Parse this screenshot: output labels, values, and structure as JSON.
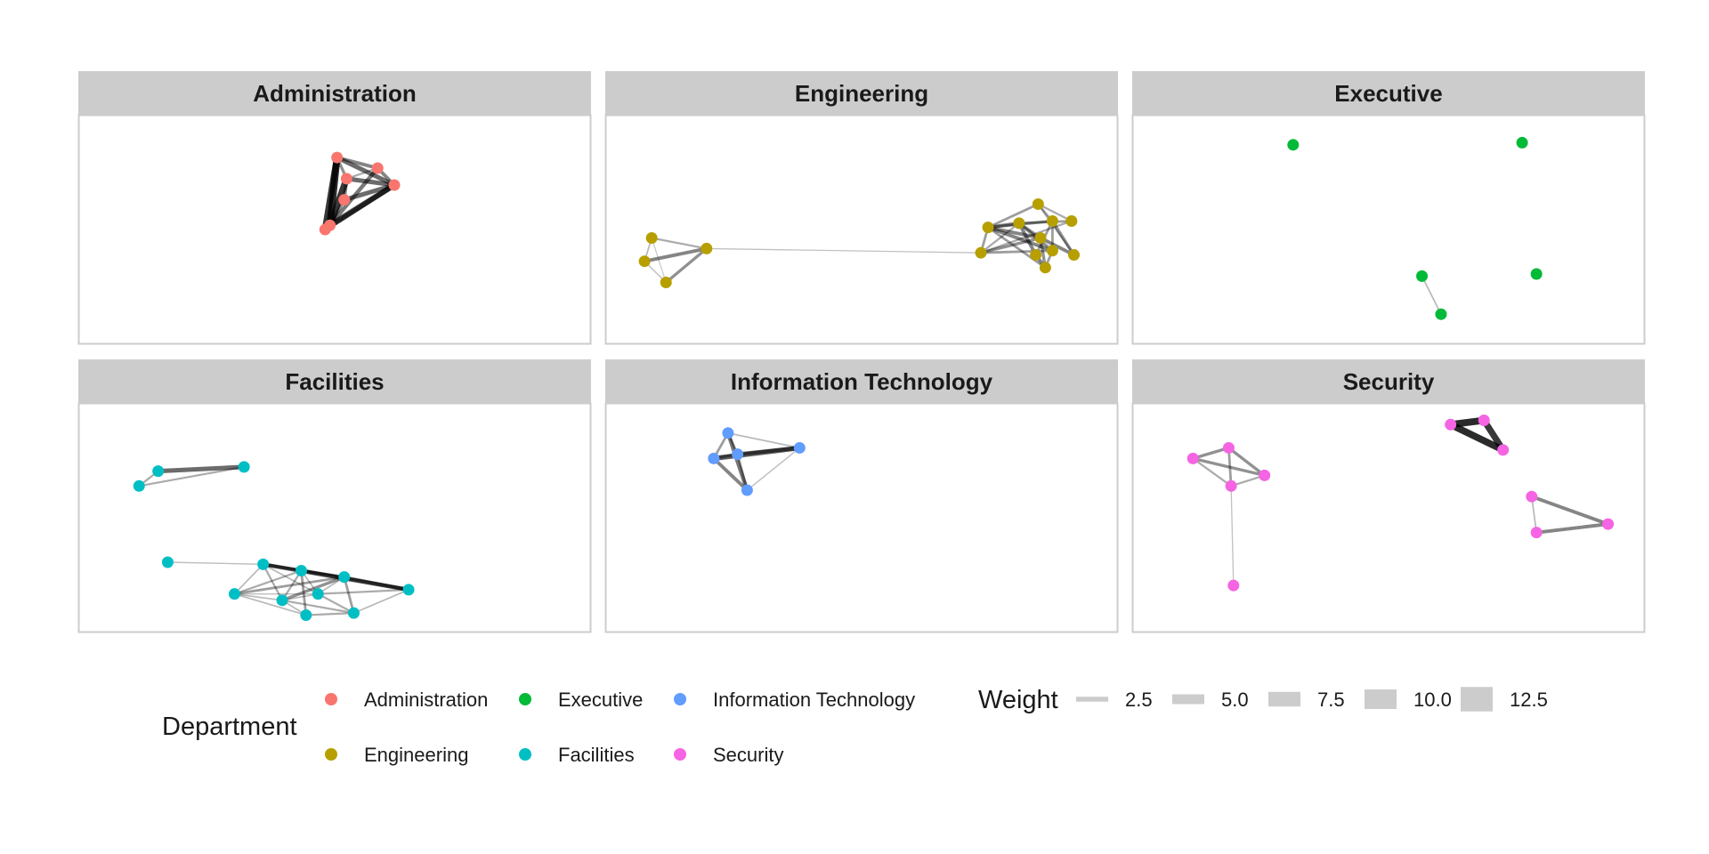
{
  "chart_data": {
    "type": "network",
    "facet_variable": "Department",
    "facets": [
      {
        "title": "Administration",
        "color": "#F8766D",
        "nodes": [
          [
            0.505,
            0.16
          ],
          [
            0.525,
            0.26
          ],
          [
            0.59,
            0.21
          ],
          [
            0.625,
            0.29
          ],
          [
            0.52,
            0.36
          ],
          [
            0.49,
            0.48
          ],
          [
            0.48,
            0.5
          ]
        ],
        "edges": [
          [
            0,
            5,
            13
          ],
          [
            0,
            6,
            12
          ],
          [
            1,
            5,
            12
          ],
          [
            0,
            2,
            6
          ],
          [
            0,
            3,
            8
          ],
          [
            2,
            3,
            6
          ],
          [
            1,
            3,
            8
          ],
          [
            4,
            3,
            8
          ],
          [
            5,
            3,
            10
          ],
          [
            6,
            3,
            9
          ],
          [
            2,
            5,
            7
          ],
          [
            1,
            4,
            6
          ],
          [
            0,
            1,
            5
          ],
          [
            4,
            5,
            6
          ],
          [
            1,
            2,
            3
          ]
        ]
      },
      {
        "title": "Engineering",
        "color": "#B79F00",
        "nodes": [
          [
            0.06,
            0.54
          ],
          [
            0.045,
            0.65
          ],
          [
            0.09,
            0.75
          ],
          [
            0.175,
            0.59
          ],
          [
            0.75,
            0.61
          ],
          [
            0.765,
            0.49
          ],
          [
            0.83,
            0.47
          ],
          [
            0.87,
            0.38
          ],
          [
            0.9,
            0.46
          ],
          [
            0.875,
            0.54
          ],
          [
            0.865,
            0.62
          ],
          [
            0.9,
            0.6
          ],
          [
            0.945,
            0.62
          ],
          [
            0.94,
            0.46
          ],
          [
            0.885,
            0.68
          ]
        ],
        "edges": [
          [
            0,
            3,
            3
          ],
          [
            1,
            3,
            6
          ],
          [
            2,
            3,
            5
          ],
          [
            0,
            1,
            2
          ],
          [
            1,
            2,
            1.5
          ],
          [
            0,
            2,
            1
          ],
          [
            3,
            4,
            1.3
          ],
          [
            4,
            5,
            4
          ],
          [
            5,
            6,
            6
          ],
          [
            5,
            7,
            4
          ],
          [
            5,
            8,
            5
          ],
          [
            5,
            9,
            6
          ],
          [
            6,
            9,
            5
          ],
          [
            6,
            10,
            6
          ],
          [
            7,
            13,
            3
          ],
          [
            8,
            12,
            5
          ],
          [
            9,
            12,
            6
          ],
          [
            4,
            11,
            4
          ],
          [
            10,
            14,
            6
          ],
          [
            11,
            14,
            4
          ],
          [
            4,
            13,
            3
          ],
          [
            4,
            9,
            5
          ],
          [
            6,
            13,
            4
          ],
          [
            8,
            11,
            4
          ],
          [
            9,
            14,
            5
          ],
          [
            5,
            11,
            6
          ],
          [
            5,
            14,
            4
          ],
          [
            7,
            12,
            3
          ],
          [
            6,
            11,
            5
          ],
          [
            4,
            6,
            3
          ],
          [
            8,
            10,
            4
          ],
          [
            7,
            8,
            3
          ]
        ]
      },
      {
        "title": "Executive",
        "color": "#00BA38",
        "nodes": [
          [
            0.3,
            0.1
          ],
          [
            0.78,
            0.09
          ],
          [
            0.57,
            0.72
          ],
          [
            0.81,
            0.71
          ],
          [
            0.61,
            0.9
          ]
        ],
        "edges": [
          [
            2,
            4,
            2
          ]
        ]
      },
      {
        "title": "Facilities",
        "color": "#00BFC4",
        "nodes": [
          [
            0.09,
            0.35
          ],
          [
            0.13,
            0.28
          ],
          [
            0.31,
            0.26
          ],
          [
            0.15,
            0.71
          ],
          [
            0.35,
            0.72
          ],
          [
            0.29,
            0.86
          ],
          [
            0.39,
            0.89
          ],
          [
            0.43,
            0.75
          ],
          [
            0.52,
            0.78
          ],
          [
            0.465,
            0.86
          ],
          [
            0.44,
            0.96
          ],
          [
            0.54,
            0.95
          ],
          [
            0.655,
            0.84
          ]
        ],
        "edges": [
          [
            0,
            1,
            3
          ],
          [
            1,
            2,
            8
          ],
          [
            0,
            2,
            3
          ],
          [
            3,
            4,
            1.5
          ],
          [
            4,
            12,
            7
          ],
          [
            4,
            7,
            6
          ],
          [
            4,
            8,
            5
          ],
          [
            7,
            12,
            7
          ],
          [
            8,
            12,
            5
          ],
          [
            5,
            7,
            3
          ],
          [
            5,
            8,
            4
          ],
          [
            6,
            7,
            3
          ],
          [
            6,
            8,
            5
          ],
          [
            7,
            10,
            4
          ],
          [
            8,
            11,
            4
          ],
          [
            9,
            11,
            3
          ],
          [
            5,
            10,
            2
          ],
          [
            6,
            11,
            3
          ],
          [
            4,
            5,
            2
          ],
          [
            4,
            6,
            3
          ],
          [
            9,
            12,
            3
          ],
          [
            8,
            9,
            2
          ],
          [
            7,
            9,
            2
          ],
          [
            10,
            11,
            3
          ],
          [
            6,
            9,
            2
          ],
          [
            5,
            9,
            1.5
          ],
          [
            7,
            8,
            3
          ],
          [
            4,
            9,
            2
          ],
          [
            11,
            12,
            2
          ],
          [
            5,
            6,
            2
          ],
          [
            6,
            10,
            2
          ]
        ]
      },
      {
        "title": "Information Technology",
        "color": "#619CFF",
        "nodes": [
          [
            0.22,
            0.1
          ],
          [
            0.19,
            0.22
          ],
          [
            0.24,
            0.2
          ],
          [
            0.37,
            0.17
          ],
          [
            0.26,
            0.37
          ]
        ],
        "edges": [
          [
            1,
            3,
            9
          ],
          [
            2,
            3,
            7
          ],
          [
            0,
            4,
            7
          ],
          [
            1,
            4,
            6
          ],
          [
            0,
            1,
            4
          ],
          [
            0,
            2,
            4
          ],
          [
            1,
            2,
            5
          ],
          [
            2,
            4,
            4
          ],
          [
            3,
            4,
            1.5
          ],
          [
            0,
            3,
            2
          ]
        ]
      },
      {
        "title": "Security",
        "color": "#F564E3",
        "nodes": [
          [
            0.09,
            0.22
          ],
          [
            0.165,
            0.17
          ],
          [
            0.24,
            0.3
          ],
          [
            0.17,
            0.35
          ],
          [
            0.175,
            0.82
          ],
          [
            0.63,
            0.06
          ],
          [
            0.7,
            0.04
          ],
          [
            0.74,
            0.18
          ],
          [
            0.8,
            0.4
          ],
          [
            0.81,
            0.57
          ],
          [
            0.96,
            0.53
          ]
        ],
        "edges": [
          [
            0,
            1,
            5
          ],
          [
            0,
            2,
            5
          ],
          [
            1,
            2,
            5
          ],
          [
            0,
            3,
            3
          ],
          [
            1,
            3,
            4
          ],
          [
            2,
            3,
            3
          ],
          [
            3,
            4,
            1.3
          ],
          [
            5,
            6,
            13
          ],
          [
            5,
            7,
            13
          ],
          [
            6,
            7,
            12
          ],
          [
            8,
            9,
            2
          ],
          [
            8,
            10,
            6
          ],
          [
            9,
            10,
            6
          ]
        ]
      }
    ],
    "legend_department": {
      "title": "Department",
      "entries": [
        {
          "name": "Administration",
          "color": "#F8766D"
        },
        {
          "name": "Executive",
          "color": "#00BA38"
        },
        {
          "name": "Information Technology",
          "color": "#619CFF"
        },
        {
          "name": "Engineering",
          "color": "#B79F00"
        },
        {
          "name": "Facilities",
          "color": "#00BFC4"
        },
        {
          "name": "Security",
          "color": "#F564E3"
        }
      ]
    },
    "legend_weight": {
      "title": "Weight",
      "entries": [
        {
          "label": "2.5",
          "value": 2.5
        },
        {
          "label": "5.0",
          "value": 5.0
        },
        {
          "label": "7.5",
          "value": 7.5
        },
        {
          "label": "10.0",
          "value": 10.0
        },
        {
          "label": "12.5",
          "value": 12.5
        }
      ]
    },
    "strip_color": "#CCCCCC",
    "panel_border_color": "#CCCCCC",
    "edge_color": "#000000"
  }
}
